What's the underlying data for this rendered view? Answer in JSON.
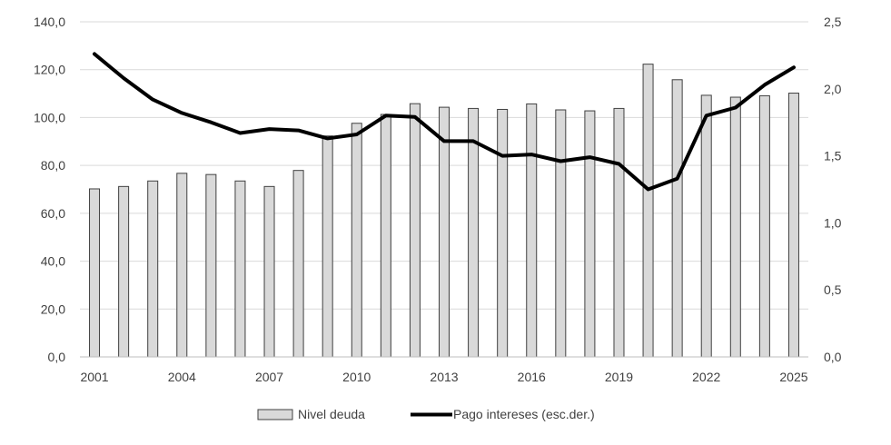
{
  "chart_data": {
    "type": "bar",
    "title": "",
    "x": [
      2001,
      2002,
      2003,
      2004,
      2005,
      2006,
      2007,
      2008,
      2009,
      2010,
      2011,
      2012,
      2013,
      2014,
      2015,
      2016,
      2017,
      2018,
      2019,
      2020,
      2021,
      2022,
      2023,
      2024,
      2025
    ],
    "x_tick_labels": [
      "2001",
      "2004",
      "2007",
      "2010",
      "2013",
      "2016",
      "2019",
      "2022",
      "2025"
    ],
    "y_left": {
      "min": 0,
      "max": 140,
      "step": 20,
      "tick_labels": [
        "0,0",
        "20,0",
        "40,0",
        "60,0",
        "80,0",
        "100,0",
        "120,0",
        "140,0"
      ]
    },
    "y_right": {
      "min": 0,
      "max": 2.5,
      "step": 0.5,
      "tick_labels": [
        "0,0",
        "0,5",
        "1,0",
        "1,5",
        "2,0",
        "2,5"
      ]
    },
    "grid": true,
    "legend_position": "bottom",
    "series": [
      {
        "name": "Nivel deuda",
        "type": "bar",
        "axis": "left",
        "color": "#d9d9d9",
        "edge_color": "#404040",
        "values": [
          70.2,
          71.2,
          73.5,
          76.7,
          76.2,
          73.5,
          71.2,
          77.9,
          92.3,
          97.6,
          101.3,
          105.8,
          104.3,
          103.8,
          103.4,
          105.7,
          103.2,
          102.8,
          103.8,
          122.3,
          115.8,
          109.3,
          108.5,
          109.1,
          110.2
        ]
      },
      {
        "name": "Pago intereses (esc.der.)",
        "type": "line",
        "axis": "right",
        "color": "#000000",
        "values": [
          2.26,
          2.08,
          1.92,
          1.82,
          1.75,
          1.67,
          1.7,
          1.69,
          1.63,
          1.66,
          1.8,
          1.79,
          1.61,
          1.61,
          1.5,
          1.51,
          1.46,
          1.49,
          1.44,
          1.25,
          1.33,
          1.8,
          1.86,
          2.03,
          2.16
        ]
      }
    ]
  }
}
